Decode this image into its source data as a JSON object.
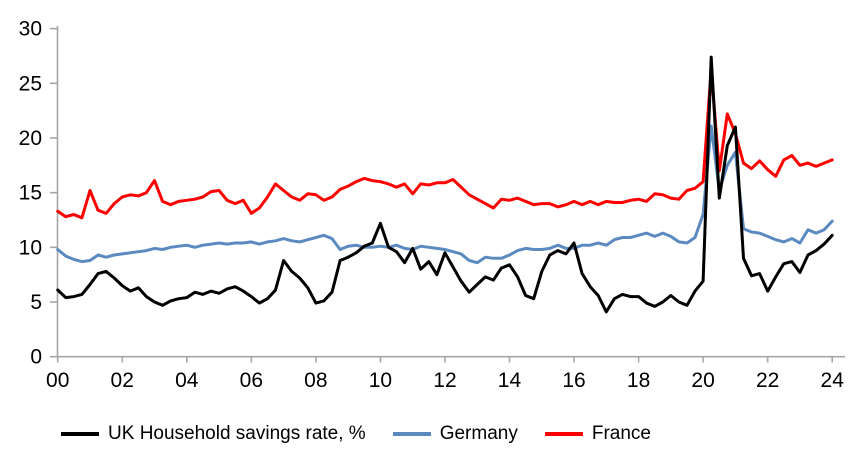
{
  "chart_data": {
    "type": "line",
    "title": "",
    "frequency": "quarterly",
    "x_period_start": "2000 Q1",
    "x_period_end": "2024 Q1",
    "x_tick_labels": [
      "00",
      "02",
      "04",
      "06",
      "08",
      "10",
      "12",
      "14",
      "16",
      "18",
      "20",
      "22",
      "24"
    ],
    "y_ticks": [
      0,
      5,
      10,
      15,
      20,
      25,
      30
    ],
    "ylim": [
      0,
      30
    ],
    "grid": false,
    "legend_position": "bottom",
    "axis_color": "#a6a6a6",
    "tick_label_color": "#000000",
    "background_color": "#ffffff",
    "series": [
      {
        "id": "uk",
        "name": "UK Household savings rate, %",
        "color": "#000000",
        "values": [
          6.1,
          5.4,
          5.5,
          5.7,
          6.6,
          7.6,
          7.8,
          7.2,
          6.5,
          6.0,
          6.3,
          5.5,
          5.0,
          4.7,
          5.1,
          5.3,
          5.4,
          5.9,
          5.7,
          6.0,
          5.8,
          6.2,
          6.4,
          6.0,
          5.5,
          4.9,
          5.3,
          6.1,
          8.8,
          7.8,
          7.2,
          6.3,
          4.9,
          5.1,
          5.9,
          8.8,
          9.1,
          9.5,
          10.1,
          10.4,
          12.2,
          10.0,
          9.6,
          8.6,
          9.9,
          8.0,
          8.7,
          7.5,
          9.5,
          8.2,
          6.9,
          5.9,
          6.6,
          7.3,
          7.0,
          8.1,
          8.4,
          7.3,
          5.6,
          5.3,
          7.8,
          9.3,
          9.7,
          9.4,
          10.4,
          7.6,
          6.4,
          5.6,
          4.1,
          5.3,
          5.7,
          5.5,
          5.5,
          4.9,
          4.6,
          5.0,
          5.6,
          5.0,
          4.7,
          6.0,
          6.9,
          27.4,
          14.5,
          19.3,
          21.0,
          9.0,
          7.4,
          7.6,
          6.0,
          7.3,
          8.5,
          8.7,
          7.7,
          9.3,
          9.7,
          10.3,
          11.1
        ]
      },
      {
        "id": "germany",
        "name": "Germany",
        "color": "#5b8ac0",
        "values": [
          9.8,
          9.2,
          8.9,
          8.7,
          8.8,
          9.3,
          9.1,
          9.3,
          9.4,
          9.5,
          9.6,
          9.7,
          9.9,
          9.8,
          10.0,
          10.1,
          10.2,
          10.0,
          10.2,
          10.3,
          10.4,
          10.3,
          10.4,
          10.4,
          10.5,
          10.3,
          10.5,
          10.6,
          10.8,
          10.6,
          10.5,
          10.7,
          10.9,
          11.1,
          10.8,
          9.8,
          10.1,
          10.2,
          10.0,
          10.0,
          10.1,
          10.0,
          10.2,
          9.9,
          9.8,
          10.1,
          10.0,
          9.9,
          9.8,
          9.6,
          9.4,
          8.8,
          8.6,
          9.1,
          9.0,
          9.0,
          9.3,
          9.7,
          9.9,
          9.8,
          9.8,
          9.9,
          10.2,
          9.9,
          9.9,
          10.2,
          10.2,
          10.4,
          10.2,
          10.7,
          10.9,
          10.9,
          11.1,
          11.3,
          11.0,
          11.3,
          11.0,
          10.5,
          10.4,
          10.9,
          13.0,
          21.1,
          15.2,
          17.5,
          18.7,
          11.7,
          11.4,
          11.3,
          11.0,
          10.7,
          10.5,
          10.8,
          10.4,
          11.6,
          11.3,
          11.6,
          12.4
        ]
      },
      {
        "id": "france",
        "name": "France",
        "color": "#ff0000",
        "values": [
          13.3,
          12.8,
          13.0,
          12.7,
          15.2,
          13.4,
          13.1,
          14.0,
          14.6,
          14.8,
          14.7,
          15.0,
          16.1,
          14.2,
          13.9,
          14.2,
          14.3,
          14.4,
          14.6,
          15.1,
          15.2,
          14.3,
          14.0,
          14.3,
          13.1,
          13.6,
          14.6,
          15.8,
          15.2,
          14.6,
          14.3,
          14.9,
          14.8,
          14.3,
          14.6,
          15.3,
          15.6,
          16.0,
          16.3,
          16.1,
          16.0,
          15.8,
          15.5,
          15.8,
          14.9,
          15.8,
          15.7,
          15.9,
          15.9,
          16.2,
          15.5,
          14.8,
          14.4,
          14.0,
          13.6,
          14.4,
          14.3,
          14.5,
          14.2,
          13.9,
          14.0,
          14.0,
          13.7,
          13.9,
          14.2,
          13.9,
          14.2,
          13.9,
          14.2,
          14.1,
          14.1,
          14.3,
          14.4,
          14.2,
          14.9,
          14.8,
          14.5,
          14.4,
          15.2,
          15.4,
          16.0,
          26.3,
          17.0,
          22.2,
          20.4,
          17.7,
          17.2,
          17.9,
          17.1,
          16.5,
          18.0,
          18.4,
          17.5,
          17.7,
          17.4,
          17.7,
          18.0
        ]
      }
    ]
  }
}
